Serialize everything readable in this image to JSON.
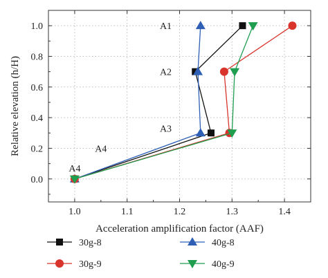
{
  "chart_data": {
    "type": "line",
    "title": "",
    "xlabel": "Acceleration amplification factor (AAF)",
    "ylabel": "Relative elevation (h/H)",
    "xlim": [
      0.95,
      1.45
    ],
    "ylim": [
      -0.15,
      1.1
    ],
    "xticks": [
      "1.0",
      "1.1",
      "1.2",
      "1.3",
      "1.4"
    ],
    "yticks": [
      "0.0",
      "0.2",
      "0.4",
      "0.6",
      "0.8",
      "1.0"
    ],
    "grid": "dotted",
    "legend_position": "bottom",
    "annotations": [
      {
        "text": "A1",
        "x": 1.2,
        "y": 1.0
      },
      {
        "text": "A2",
        "x": 1.2,
        "y": 0.7
      },
      {
        "text": "A3",
        "x": 1.2,
        "y": 0.3
      },
      {
        "text": "A4",
        "x": 1.05,
        "y": 0.2
      },
      {
        "text": "A4",
        "x": 1.0,
        "y": 0.0
      }
    ],
    "series": [
      {
        "name": "30g-8",
        "color": "#111111",
        "marker": "square",
        "x": [
          1.0,
          1.26,
          1.23,
          1.32
        ],
        "y": [
          0.0,
          0.3,
          0.7,
          1.0
        ]
      },
      {
        "name": "40g-8",
        "color": "#2e5fb5",
        "marker": "triangle-up",
        "x": [
          1.0,
          1.24,
          1.235,
          1.24
        ],
        "y": [
          0.0,
          0.3,
          0.7,
          1.0
        ]
      },
      {
        "name": "30g-9",
        "color": "#d8342c",
        "marker": "circle",
        "x": [
          1.0,
          1.295,
          1.285,
          1.415
        ],
        "y": [
          0.0,
          0.3,
          0.7,
          1.0
        ]
      },
      {
        "name": "40g-9",
        "color": "#1f9e50",
        "marker": "triangle-down",
        "x": [
          1.0,
          1.3,
          1.305,
          1.34
        ],
        "y": [
          0.0,
          0.3,
          0.7,
          1.0
        ]
      }
    ]
  }
}
